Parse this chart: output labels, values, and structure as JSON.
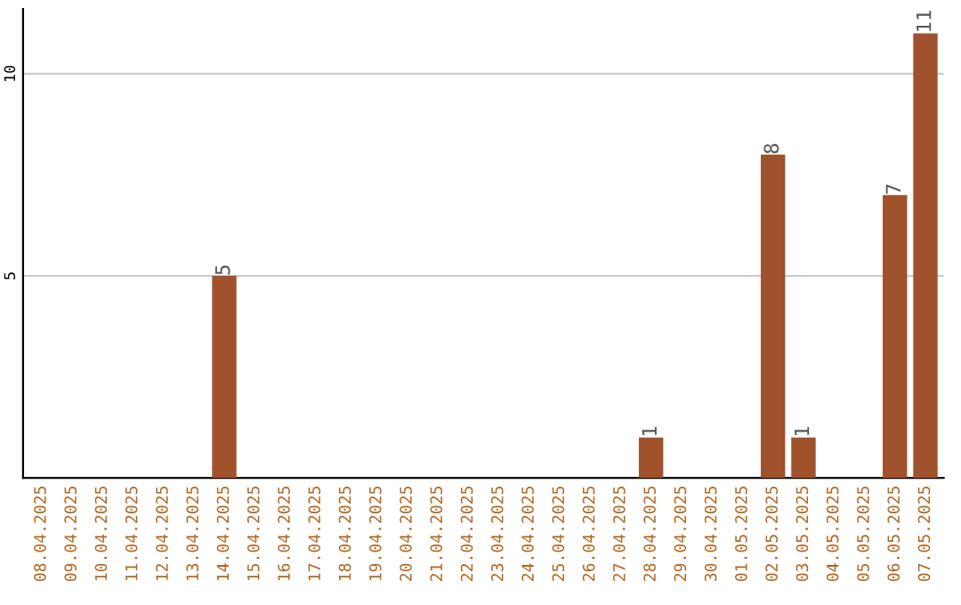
{
  "chart_data": {
    "type": "bar",
    "categories": [
      "08.04.2025",
      "09.04.2025",
      "10.04.2025",
      "11.04.2025",
      "12.04.2025",
      "13.04.2025",
      "14.04.2025",
      "15.04.2025",
      "16.04.2025",
      "17.04.2025",
      "18.04.2025",
      "19.04.2025",
      "20.04.2025",
      "21.04.2025",
      "22.04.2025",
      "23.04.2025",
      "24.04.2025",
      "25.04.2025",
      "26.04.2025",
      "27.04.2025",
      "28.04.2025",
      "29.04.2025",
      "30.04.2025",
      "01.05.2025",
      "02.05.2025",
      "03.05.2025",
      "04.05.2025",
      "05.05.2025",
      "06.05.2025",
      "07.05.2025"
    ],
    "values": [
      0,
      0,
      0,
      0,
      0,
      0,
      5,
      0,
      0,
      0,
      0,
      0,
      0,
      0,
      0,
      0,
      0,
      0,
      0,
      0,
      1,
      0,
      0,
      0,
      8,
      1,
      0,
      0,
      7,
      11
    ],
    "value_labels": [
      null,
      null,
      null,
      null,
      null,
      null,
      "5",
      null,
      null,
      null,
      null,
      null,
      null,
      null,
      null,
      null,
      null,
      null,
      null,
      null,
      "1",
      null,
      null,
      null,
      "8",
      "1",
      null,
      null,
      "7",
      "11"
    ],
    "color": "#a0522d",
    "ylim": [
      0,
      11.6
    ],
    "yticks": [
      5,
      10
    ],
    "grid": "y"
  }
}
